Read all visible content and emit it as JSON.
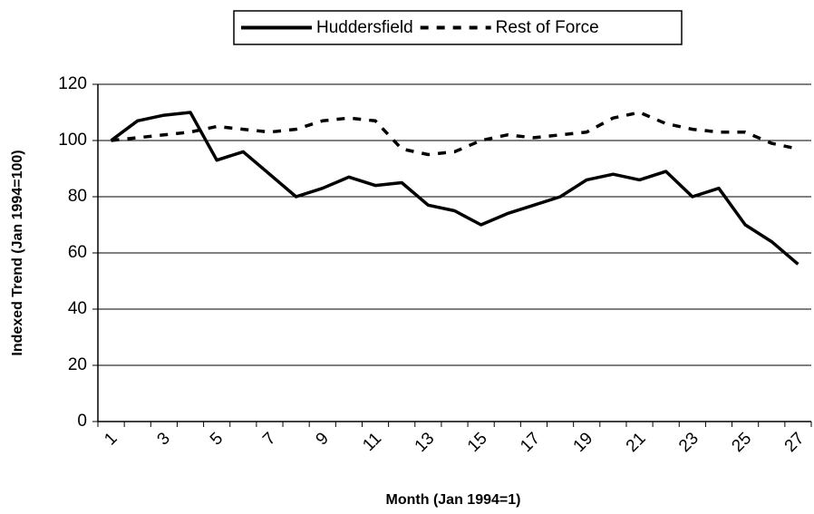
{
  "chart_data": {
    "type": "line",
    "categories": [
      1,
      null,
      3,
      null,
      5,
      null,
      7,
      null,
      9,
      null,
      11,
      null,
      13,
      null,
      15,
      null,
      17,
      null,
      19,
      null,
      21,
      null,
      23,
      null,
      25,
      null,
      27
    ],
    "series": [
      {
        "name": "Huddersfield",
        "color": "#000000",
        "style": "solid",
        "values": [
          100,
          107,
          109,
          110,
          93,
          96,
          88,
          80,
          83,
          87,
          84,
          85,
          77,
          75,
          70,
          74,
          77,
          80,
          86,
          88,
          86,
          89,
          80,
          83,
          70,
          64,
          56
        ]
      },
      {
        "name": "Rest of Force",
        "color": "#000000",
        "style": "dashed",
        "values": [
          100,
          101,
          102,
          103,
          105,
          104,
          103,
          104,
          107,
          108,
          107,
          97,
          95,
          96,
          100,
          102,
          101,
          102,
          103,
          108,
          110,
          106,
          104,
          103,
          103,
          99,
          97
        ]
      }
    ],
    "xlabel": "Month (Jan 1994=1)",
    "ylabel": "Indexed Trend (Jan 1994=100)",
    "ylim": [
      0,
      120
    ],
    "yticks": [
      0,
      20,
      40,
      60,
      80,
      100,
      120
    ],
    "grid": true,
    "legend": "top"
  }
}
